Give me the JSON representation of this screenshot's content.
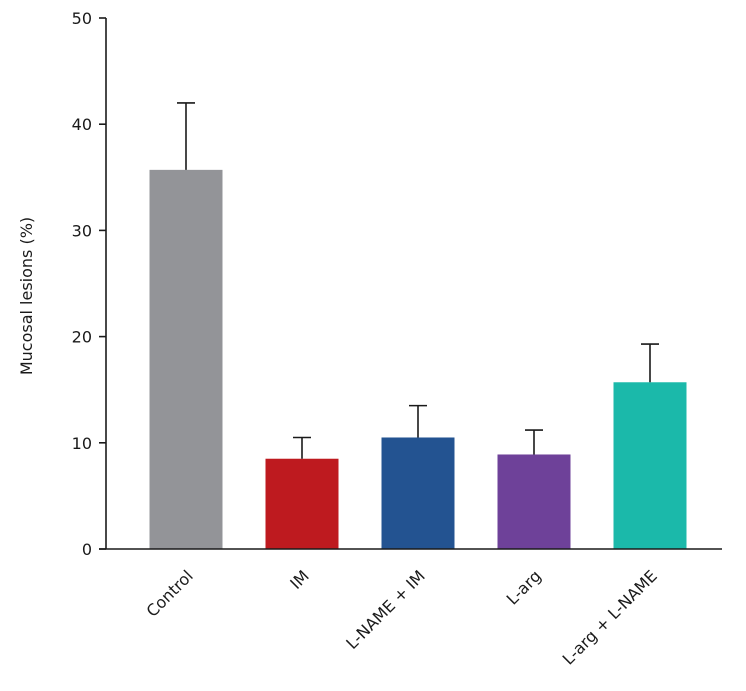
{
  "chart_data": {
    "type": "bar",
    "title": "",
    "xlabel": "",
    "ylabel": "Mucosal lesions (%)",
    "ylim": [
      0,
      50
    ],
    "yticks": [
      0,
      10,
      20,
      30,
      40,
      50
    ],
    "grid": false,
    "categories": [
      "Control",
      "IM",
      "L-NAME + IM",
      "L-arg",
      "L-arg + L-NAME"
    ],
    "values": [
      35.7,
      8.5,
      10.5,
      8.9,
      15.7
    ],
    "errors": [
      6.3,
      2.0,
      3.0,
      2.3,
      3.6
    ],
    "colors": [
      "#939498",
      "#be1a1f",
      "#235391",
      "#6e4199",
      "#1bb9aa"
    ]
  }
}
